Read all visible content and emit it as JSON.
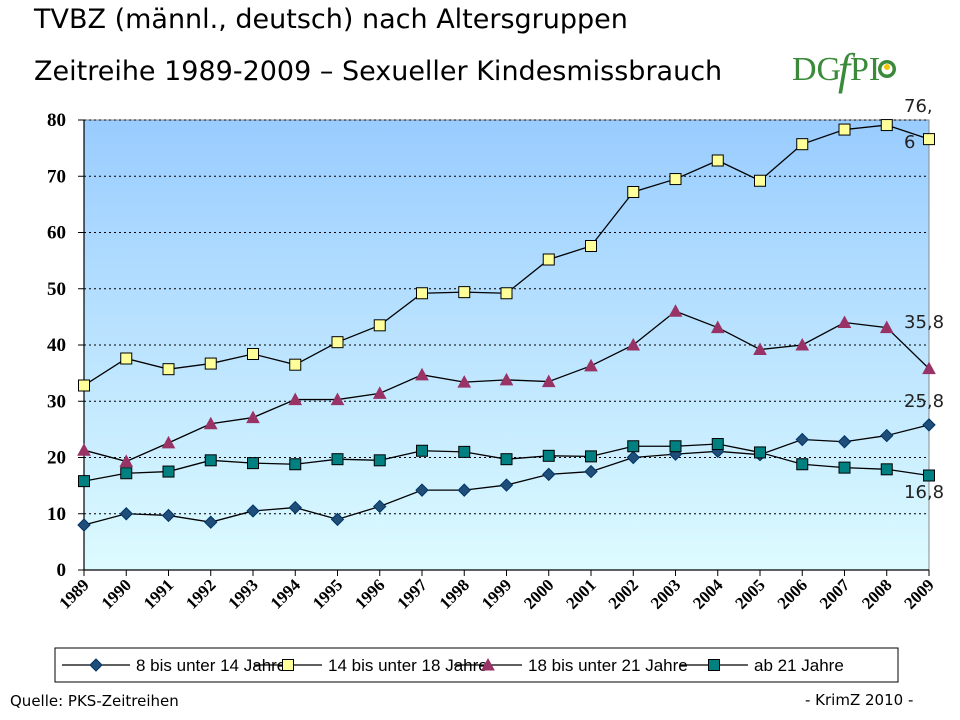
{
  "header": {
    "title": "TVBZ (männl., deutsch) nach Altersgruppen",
    "subtitle": "Zeitreihe 1989-2009 – Sexueller Kindesmissbrauch"
  },
  "logo": {
    "text_a": "DG",
    "text_b": "f",
    "text_c": "PI",
    "color": "#3a8a3a",
    "accent": "#f5c400"
  },
  "footer": {
    "source": "Quelle: PKS-Zeitreihen",
    "credit": "- KrimZ 2010 -"
  },
  "chart_data": {
    "type": "line",
    "title": "TVBZ (männl., deutsch) nach Altersgruppen",
    "categories": [
      "1989",
      "1990",
      "1991",
      "1992",
      "1993",
      "1994",
      "1995",
      "1996",
      "1997",
      "1998",
      "1999",
      "2000",
      "2001",
      "2002",
      "2003",
      "2004",
      "2005",
      "2006",
      "2007",
      "2008",
      "2009"
    ],
    "ylim": [
      0,
      80
    ],
    "yticks": [
      0,
      10,
      20,
      30,
      40,
      50,
      60,
      70,
      80
    ],
    "grid": true,
    "legend_placement": "bottom",
    "series": [
      {
        "name": "8 bis unter 14 Jahre",
        "marker": "diamond",
        "color": "#003366",
        "fill": "#1f4e79",
        "values": [
          8.0,
          10.0,
          9.7,
          8.5,
          10.5,
          11.1,
          9.0,
          11.3,
          14.2,
          14.2,
          15.1,
          17.0,
          17.5,
          20.0,
          20.6,
          21.1,
          20.5,
          23.2,
          22.8,
          23.9,
          25.8
        ]
      },
      {
        "name": "14 bis unter 18 Jahre",
        "marker": "square",
        "color": "#000000",
        "fill": "#ffff99",
        "values": [
          32.8,
          37.6,
          35.7,
          36.7,
          38.4,
          36.5,
          40.5,
          43.5,
          49.2,
          49.4,
          49.2,
          55.2,
          57.6,
          67.2,
          69.5,
          72.8,
          69.2,
          75.7,
          78.3,
          79.1,
          76.6
        ]
      },
      {
        "name": "18 bis unter 21 Jahre",
        "marker": "triangle",
        "color": "#000000",
        "fill": "#993366",
        "values": [
          21.3,
          19.3,
          22.6,
          26.0,
          27.1,
          30.3,
          30.3,
          31.4,
          34.7,
          33.4,
          33.8,
          33.5,
          36.3,
          40.0,
          46.0,
          43.1,
          39.2,
          40.0,
          44.0,
          43.1,
          35.8
        ]
      },
      {
        "name": "ab 21 Jahre",
        "marker": "square",
        "color": "#000000",
        "fill": "#008080",
        "values": [
          15.8,
          17.2,
          17.5,
          19.5,
          19.0,
          18.8,
          19.7,
          19.5,
          21.2,
          21.0,
          19.7,
          20.3,
          20.2,
          22.0,
          22.0,
          22.4,
          20.9,
          18.8,
          18.2,
          17.9,
          16.8
        ]
      }
    ],
    "end_labels": [
      {
        "series": "14 bis unter 18 Jahre",
        "text_a": "76,",
        "text_b": "6"
      },
      {
        "series": "18 bis unter 21 Jahre",
        "text_a": "35,8"
      },
      {
        "series": "8 bis unter 14 Jahre",
        "text_a": "25,8"
      },
      {
        "series": "ab 21 Jahre",
        "text_a": "16,8"
      }
    ]
  }
}
